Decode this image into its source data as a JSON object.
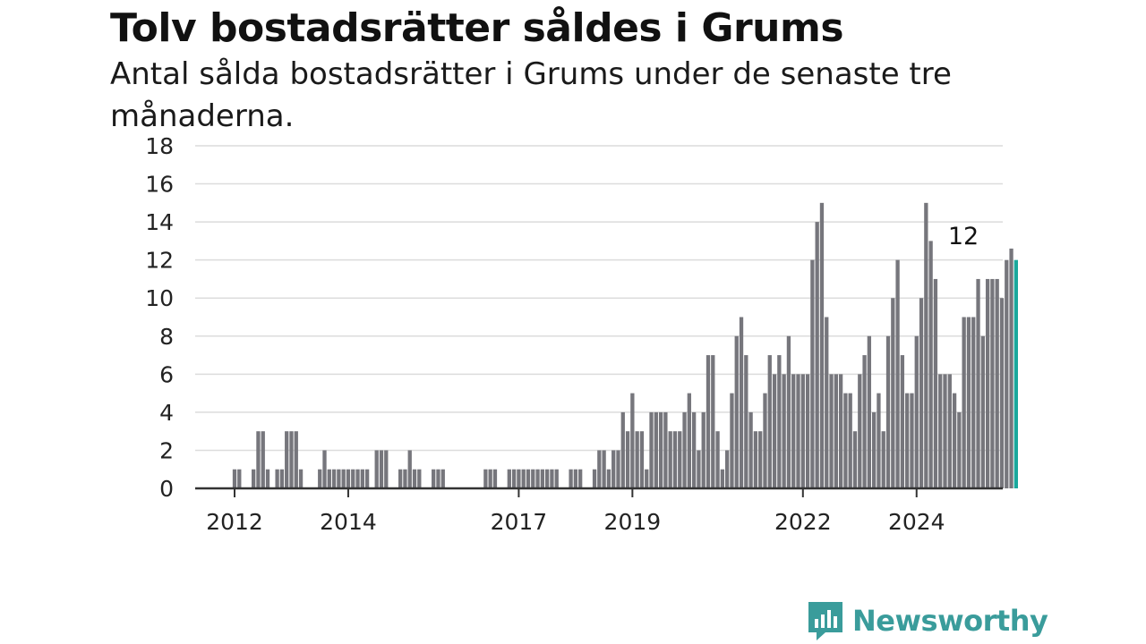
{
  "header": {
    "title": "Tolv bostadsrätter såldes i Grums",
    "subtitle": "Antal sålda bostadsrätter i Grums under de senaste tre månaderna."
  },
  "logo": {
    "text": "Newsworthy",
    "icon": "newsworthy-bubble-icon"
  },
  "colors": {
    "bar": "#76767c",
    "highlight": "#1aa89c",
    "grid": "#dcdcdc",
    "axis": "#333333",
    "brand": "#3a9c9b"
  },
  "chart_data": {
    "type": "bar",
    "x_start": "2012-01",
    "x_unit": "month",
    "xticks": [
      {
        "label": "2012",
        "month": "2012-01"
      },
      {
        "label": "2014",
        "month": "2014-01"
      },
      {
        "label": "2017",
        "month": "2017-01"
      },
      {
        "label": "2019",
        "month": "2019-01"
      },
      {
        "label": "2022",
        "month": "2022-01"
      },
      {
        "label": "2024",
        "month": "2024-01"
      }
    ],
    "yticks": [
      0,
      2,
      4,
      6,
      8,
      10,
      12,
      14,
      16,
      18
    ],
    "ylim": [
      0,
      18
    ],
    "grid": true,
    "highlight_label": "12",
    "values": [
      1,
      1,
      null,
      null,
      1,
      3,
      3,
      1,
      null,
      1,
      1,
      3,
      3,
      3,
      1,
      null,
      null,
      null,
      1,
      2,
      1,
      1,
      1,
      1,
      1,
      1,
      1,
      1,
      1,
      null,
      2,
      2,
      2,
      null,
      null,
      1,
      1,
      2,
      1,
      1,
      null,
      null,
      1,
      1,
      1,
      null,
      null,
      null,
      null,
      null,
      null,
      null,
      null,
      1,
      1,
      1,
      null,
      null,
      1,
      1,
      1,
      1,
      1,
      1,
      1,
      1,
      1,
      1,
      1,
      null,
      null,
      1,
      1,
      1,
      null,
      null,
      1,
      2,
      2,
      1,
      2,
      2,
      4,
      3,
      5,
      3,
      3,
      1,
      4,
      4,
      4,
      4,
      3,
      3,
      3,
      4,
      5,
      4,
      2,
      4,
      7,
      7,
      3,
      1,
      2,
      5,
      8,
      9,
      7,
      4,
      3,
      3,
      5,
      7,
      6,
      7,
      6,
      8,
      6,
      6,
      6,
      6,
      12,
      14,
      15,
      9,
      6,
      6,
      6,
      5,
      5,
      3,
      6,
      7,
      8,
      4,
      5,
      3,
      8,
      10,
      12,
      7,
      5,
      5,
      8,
      10,
      15,
      13,
      11,
      6,
      6,
      6,
      5,
      4,
      9,
      9,
      9,
      11,
      8,
      11,
      11,
      11,
      10,
      12,
      12.6,
      12
    ]
  }
}
